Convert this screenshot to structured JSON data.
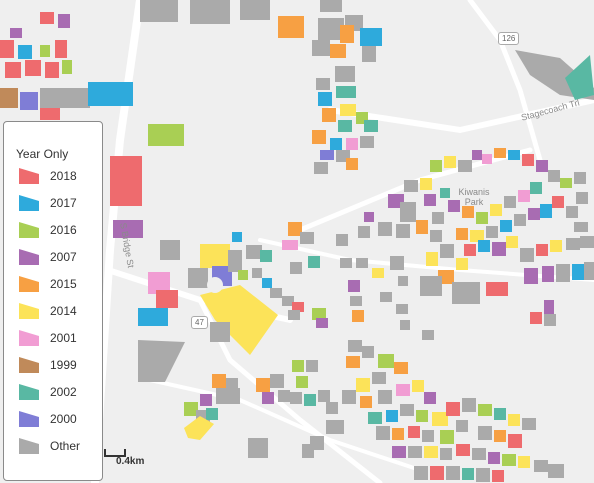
{
  "legend": {
    "title": "Year Only",
    "items": [
      {
        "label": "2018",
        "color": "#ee6b6e"
      },
      {
        "label": "2017",
        "color": "#2eaadc"
      },
      {
        "label": "2016",
        "color": "#a9cf54"
      },
      {
        "label": "2007",
        "color": "#a86cb2"
      },
      {
        "label": "2015",
        "color": "#f7a043"
      },
      {
        "label": "2014",
        "color": "#fce359"
      },
      {
        "label": "2001",
        "color": "#f19dd3"
      },
      {
        "label": "1999",
        "color": "#c08a5a"
      },
      {
        "label": "2002",
        "color": "#59b8a3"
      },
      {
        "label": "2000",
        "color": "#7f7dd6"
      },
      {
        "label": "Other",
        "color": "#aaaaaa"
      }
    ]
  },
  "map_labels": {
    "street_bridge": "S Bridge St",
    "street_stagecoach": "Stagecoach Trl",
    "park": "Kiwanis Park",
    "route_126": "126",
    "route_47": "47"
  },
  "scale": {
    "label": "0.4km"
  }
}
